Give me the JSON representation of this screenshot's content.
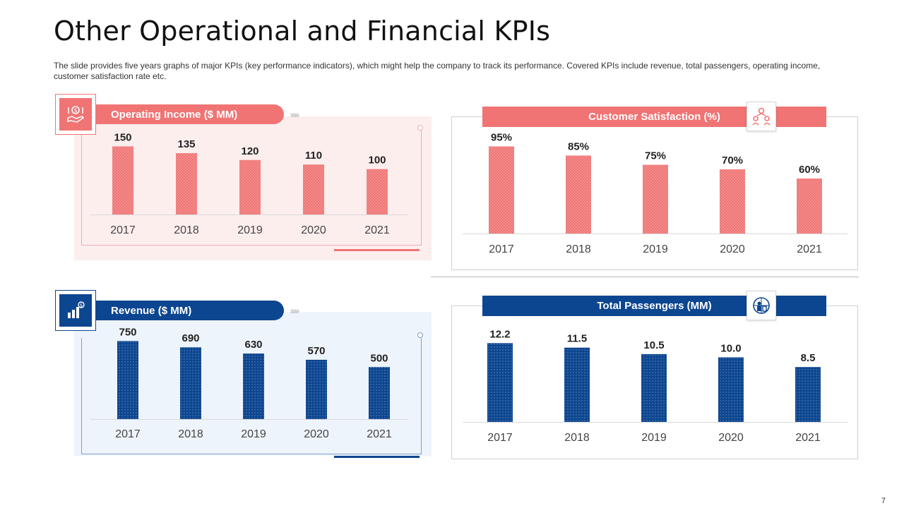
{
  "slide": {
    "title": "Other Operational and Financial KPIs",
    "subtitle": "The slide provides five years graphs of major KPIs (key performance indicators), which might help the company to track its performance. Covered KPIs include revenue, total passengers, operating income, customer satisfaction rate etc.",
    "page_number": "7",
    "chevrons": "›››››››"
  },
  "colors": {
    "red": "#f07474",
    "red_light": "#fdeeee",
    "red_border": "#f2aaaa",
    "blue": "#0d4690",
    "blue_light": "#eef4fb",
    "blue_border": "#7f9fc8"
  },
  "icons": {
    "operating_income": "money-hand-icon",
    "revenue": "revenue-growth-icon",
    "customer_satisfaction": "customer-group-icon",
    "total_passengers": "passenger-globe-icon"
  },
  "chart_data": [
    {
      "id": "operating_income",
      "type": "bar",
      "title": "Operating Income ($ MM)",
      "categories": [
        "2017",
        "2018",
        "2019",
        "2020",
        "2021"
      ],
      "values": [
        150,
        135,
        120,
        110,
        100
      ],
      "labels": [
        "150",
        "135",
        "120",
        "110",
        "100"
      ],
      "ylim": [
        0,
        160
      ],
      "color": "#f07474",
      "pattern": "red"
    },
    {
      "id": "customer_satisfaction",
      "type": "bar",
      "title": "Customer Satisfaction (%)",
      "categories": [
        "2017",
        "2018",
        "2019",
        "2020",
        "2021"
      ],
      "values": [
        95,
        85,
        75,
        70,
        60
      ],
      "labels": [
        "95%",
        "85%",
        "75%",
        "70%",
        "60%"
      ],
      "ylim": [
        0,
        100
      ],
      "color": "#f07474",
      "pattern": "red"
    },
    {
      "id": "revenue",
      "type": "bar",
      "title": "Revenue ($ MM)",
      "categories": [
        "2017",
        "2018",
        "2019",
        "2020",
        "2021"
      ],
      "values": [
        750,
        690,
        630,
        570,
        500
      ],
      "labels": [
        "750",
        "690",
        "630",
        "570",
        "500"
      ],
      "ylim": [
        0,
        800
      ],
      "color": "#0d4690",
      "pattern": "blue"
    },
    {
      "id": "total_passengers",
      "type": "bar",
      "title": "Total Passengers (MM)",
      "categories": [
        "2017",
        "2018",
        "2019",
        "2020",
        "2021"
      ],
      "values": [
        12.2,
        11.5,
        10.5,
        10.0,
        8.5
      ],
      "labels": [
        "12.2",
        "11.5",
        "10.5",
        "10.0",
        "8.5"
      ],
      "ylim": [
        0,
        13
      ],
      "color": "#0d4690",
      "pattern": "blue"
    }
  ]
}
